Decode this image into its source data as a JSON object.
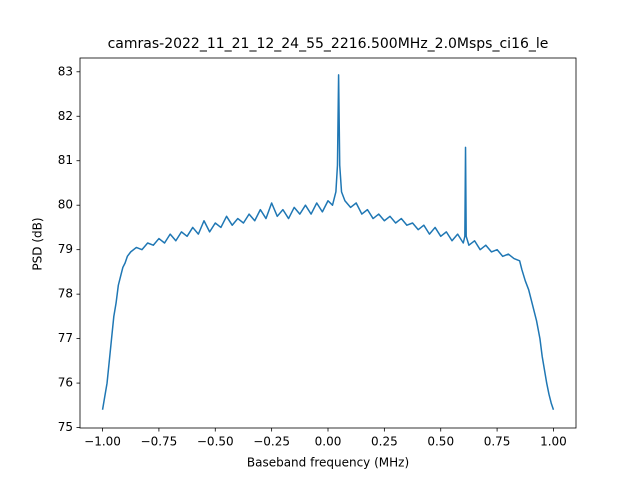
{
  "chart_data": {
    "type": "line",
    "title": "camras-2022_11_21_12_24_55_2216.500MHz_2.0Msps_ci16_le",
    "xlabel": "Baseband frequency (MHz)",
    "ylabel": "PSD (dB)",
    "color": "#1f77b4",
    "xlim": [
      -1.1,
      1.1
    ],
    "ylim": [
      74.99,
      83.31
    ],
    "xticks": [
      {
        "value": -1,
        "label": "−1.00"
      },
      {
        "value": -0.75,
        "label": "−0.75"
      },
      {
        "value": -0.5,
        "label": "−0.50"
      },
      {
        "value": -0.25,
        "label": "−0.25"
      },
      {
        "value": 0,
        "label": "0.00"
      },
      {
        "value": 0.25,
        "label": "0.25"
      },
      {
        "value": 0.5,
        "label": "0.50"
      },
      {
        "value": 0.75,
        "label": "0.75"
      },
      {
        "value": 1,
        "label": "1.00"
      }
    ],
    "yticks": [
      75,
      76,
      77,
      78,
      79,
      80,
      81,
      82,
      83
    ],
    "x": [
      -1.0,
      -0.99,
      -0.98,
      -0.97,
      -0.96,
      -0.95,
      -0.94,
      -0.93,
      -0.92,
      -0.91,
      -0.9,
      -0.89,
      -0.875,
      -0.85,
      -0.825,
      -0.8,
      -0.775,
      -0.75,
      -0.725,
      -0.7,
      -0.675,
      -0.65,
      -0.625,
      -0.6,
      -0.575,
      -0.55,
      -0.525,
      -0.5,
      -0.475,
      -0.45,
      -0.425,
      -0.4,
      -0.375,
      -0.35,
      -0.325,
      -0.3,
      -0.275,
      -0.25,
      -0.225,
      -0.2,
      -0.175,
      -0.15,
      -0.125,
      -0.1,
      -0.075,
      -0.05,
      -0.025,
      0,
      0.02,
      0.035,
      0.042,
      0.047,
      0.052,
      0.06,
      0.075,
      0.1,
      0.125,
      0.15,
      0.175,
      0.2,
      0.225,
      0.25,
      0.275,
      0.3,
      0.325,
      0.35,
      0.375,
      0.4,
      0.425,
      0.45,
      0.475,
      0.5,
      0.525,
      0.55,
      0.575,
      0.6,
      0.607,
      0.61,
      0.613,
      0.625,
      0.65,
      0.675,
      0.7,
      0.725,
      0.75,
      0.775,
      0.8,
      0.825,
      0.85,
      0.86,
      0.875,
      0.89,
      0.9,
      0.91,
      0.925,
      0.94,
      0.95,
      0.96,
      0.97,
      0.98,
      0.99,
      1.0
    ],
    "values": [
      75.4,
      75.7,
      76.0,
      76.5,
      77.0,
      77.5,
      77.8,
      78.2,
      78.4,
      78.6,
      78.7,
      78.85,
      78.95,
      79.05,
      79.0,
      79.15,
      79.1,
      79.25,
      79.15,
      79.35,
      79.2,
      79.4,
      79.3,
      79.5,
      79.35,
      79.65,
      79.4,
      79.6,
      79.5,
      79.75,
      79.55,
      79.7,
      79.6,
      79.8,
      79.65,
      79.9,
      79.7,
      80.05,
      79.75,
      79.9,
      79.7,
      79.95,
      79.8,
      80.0,
      79.8,
      80.05,
      79.85,
      80.1,
      80.0,
      80.3,
      80.9,
      82.93,
      80.9,
      80.3,
      80.1,
      79.95,
      80.05,
      79.8,
      79.9,
      79.7,
      79.8,
      79.65,
      79.75,
      79.6,
      79.7,
      79.55,
      79.6,
      79.45,
      79.55,
      79.35,
      79.5,
      79.3,
      79.4,
      79.2,
      79.35,
      79.15,
      79.3,
      81.3,
      79.3,
      79.1,
      79.2,
      79.0,
      79.1,
      78.95,
      79.0,
      78.85,
      78.9,
      78.8,
      78.75,
      78.55,
      78.3,
      78.1,
      77.9,
      77.7,
      77.4,
      77.0,
      76.6,
      76.3,
      76.0,
      75.75,
      75.55,
      75.4
    ]
  }
}
